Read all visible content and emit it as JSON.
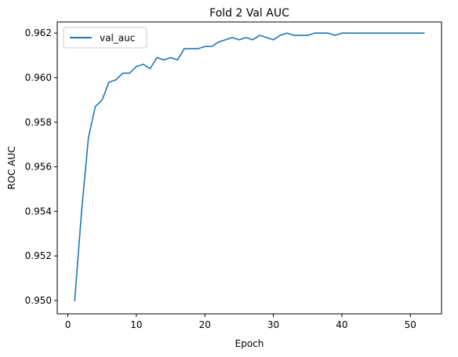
{
  "chart_data": {
    "type": "line",
    "title": "Fold 2 Val AUC",
    "xlabel": "Epoch",
    "ylabel": "ROC AUC",
    "xlim": [
      -1.55,
      54.55
    ],
    "ylim": [
      0.9494,
      0.9625
    ],
    "xticks": [
      0,
      10,
      20,
      30,
      40,
      50
    ],
    "yticks": [
      0.95,
      0.952,
      0.954,
      0.956,
      0.958,
      0.96,
      0.962
    ],
    "xtick_labels": [
      "0",
      "10",
      "20",
      "30",
      "40",
      "50"
    ],
    "ytick_labels": [
      "0.950",
      "0.952",
      "0.954",
      "0.956",
      "0.958",
      "0.960",
      "0.962"
    ],
    "grid": false,
    "legend_position": "upper-left",
    "series": [
      {
        "name": "val_auc",
        "color": "#1f77b4",
        "x": [
          1,
          2,
          3,
          4,
          5,
          6,
          7,
          8,
          9,
          10,
          11,
          12,
          13,
          14,
          15,
          16,
          17,
          18,
          19,
          20,
          21,
          22,
          23,
          24,
          25,
          26,
          27,
          28,
          29,
          30,
          31,
          32,
          33,
          34,
          35,
          36,
          37,
          38,
          39,
          40,
          41,
          42,
          43,
          44,
          45,
          46,
          47,
          48,
          49,
          50,
          51,
          52
        ],
        "values": [
          0.95,
          0.954,
          0.9573,
          0.9587,
          0.959,
          0.9598,
          0.9599,
          0.9602,
          0.9602,
          0.9605,
          0.9606,
          0.9604,
          0.9609,
          0.9608,
          0.9609,
          0.9608,
          0.9613,
          0.9613,
          0.9613,
          0.9614,
          0.9614,
          0.9616,
          0.9617,
          0.9618,
          0.9617,
          0.9618,
          0.9617,
          0.9619,
          0.9618,
          0.9617,
          0.9619,
          0.962,
          0.9619,
          0.9619,
          0.9619,
          0.962,
          0.962,
          0.962,
          0.9619,
          0.962,
          0.962,
          0.962,
          0.962,
          0.962,
          0.962,
          0.962,
          0.962,
          0.962,
          0.962,
          0.962,
          0.962,
          0.962
        ]
      }
    ]
  }
}
